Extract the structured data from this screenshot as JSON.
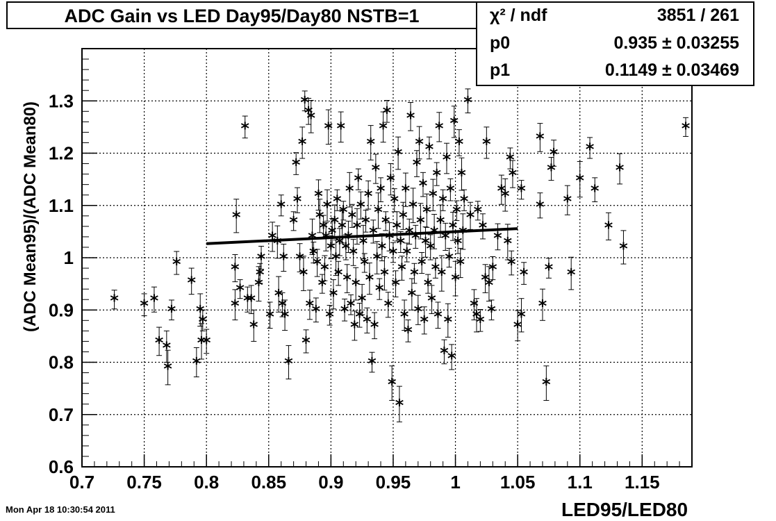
{
  "title": "ADC Gain vs LED Day95/Day80 NSTB=1",
  "stats": [
    {
      "label": "χ² / ndf",
      "value": "3851 / 261"
    },
    {
      "label": "p0",
      "value": "0.935 ± 0.03255"
    },
    {
      "label": "p1",
      "value": "0.1149 ± 0.03469"
    }
  ],
  "footer_date": "Mon Apr 18 10:30:54 2011",
  "chart_data": {
    "type": "scatter",
    "title": "ADC Gain vs LED Day95/Day80 NSTB=1",
    "xlabel": "LED95/LED80",
    "ylabel": "(ADC Mean95)/(ADC Mean80)",
    "xlim": [
      0.7,
      1.19
    ],
    "ylim": [
      0.6,
      1.4
    ],
    "x_ticks": [
      "0.7",
      "0.75",
      "0.8",
      "0.85",
      "0.9",
      "0.95",
      "1",
      "1.05",
      "1.1",
      "1.15"
    ],
    "y_ticks": [
      "0.6",
      "0.7",
      "0.8",
      "0.9",
      "1",
      "1.1",
      "1.2",
      "1.3"
    ],
    "grid": true,
    "fit_line": {
      "p0": 0.935,
      "p1": 0.1149,
      "x_range": [
        0.8,
        1.05
      ]
    },
    "points": [
      [
        0.726,
        0.92
      ],
      [
        0.75,
        0.91
      ],
      [
        0.758,
        0.92
      ],
      [
        0.762,
        0.84
      ],
      [
        0.768,
        0.83
      ],
      [
        0.769,
        0.79
      ],
      [
        0.772,
        0.9
      ],
      [
        0.776,
        0.99
      ],
      [
        0.788,
        0.955
      ],
      [
        0.792,
        0.8
      ],
      [
        0.795,
        0.9
      ],
      [
        0.796,
        0.84
      ],
      [
        0.797,
        0.88
      ],
      [
        0.8,
        0.84
      ],
      [
        0.823,
        0.98
      ],
      [
        0.823,
        0.91
      ],
      [
        0.824,
        1.08
      ],
      [
        0.827,
        0.94
      ],
      [
        0.831,
        1.25
      ],
      [
        0.833,
        0.92
      ],
      [
        0.836,
        0.92
      ],
      [
        0.838,
        0.87
      ],
      [
        0.842,
        0.95
      ],
      [
        0.843,
        0.97
      ],
      [
        0.844,
        1.0
      ],
      [
        0.851,
        0.89
      ],
      [
        0.853,
        1.04
      ],
      [
        0.857,
        1.03
      ],
      [
        0.858,
        0.93
      ],
      [
        0.86,
        1.1
      ],
      [
        0.861,
        0.91
      ],
      [
        0.862,
        1.0
      ],
      [
        0.863,
        0.89
      ],
      [
        0.866,
        0.8
      ],
      [
        0.87,
        1.07
      ],
      [
        0.872,
        1.18
      ],
      [
        0.873,
        1.11
      ],
      [
        0.875,
        1.0
      ],
      [
        0.877,
        1.22
      ],
      [
        0.878,
        0.97
      ],
      [
        0.879,
        1.3
      ],
      [
        0.88,
        0.84
      ],
      [
        0.882,
        1.28
      ],
      [
        0.883,
        0.91
      ],
      [
        0.884,
        1.27
      ],
      [
        0.885,
        1.04
      ],
      [
        0.886,
        1.01
      ],
      [
        0.888,
        0.9
      ],
      [
        0.889,
        0.99
      ],
      [
        0.89,
        1.12
      ],
      [
        0.891,
        1.08
      ],
      [
        0.893,
        0.95
      ],
      [
        0.894,
        1.06
      ],
      [
        0.895,
        0.98
      ],
      [
        0.896,
        1.04
      ],
      [
        0.897,
        1.1
      ],
      [
        0.898,
        1.25
      ],
      [
        0.899,
        0.89
      ],
      [
        0.9,
        1.02
      ],
      [
        0.901,
        1.05
      ],
      [
        0.902,
        0.93
      ],
      [
        0.903,
        1.07
      ],
      [
        0.904,
        1.0
      ],
      [
        0.905,
        1.11
      ],
      [
        0.906,
        0.97
      ],
      [
        0.907,
        1.03
      ],
      [
        0.908,
        1.25
      ],
      [
        0.909,
        1.06
      ],
      [
        0.91,
        1.09
      ],
      [
        0.911,
        0.9
      ],
      [
        0.912,
        1.02
      ],
      [
        0.913,
        0.96
      ],
      [
        0.914,
        1.04
      ],
      [
        0.915,
        1.13
      ],
      [
        0.916,
        0.91
      ],
      [
        0.917,
        1.08
      ],
      [
        0.918,
        1.01
      ],
      [
        0.919,
        0.87
      ],
      [
        0.92,
        0.95
      ],
      [
        0.921,
        1.06
      ],
      [
        0.922,
        1.15
      ],
      [
        0.923,
        0.89
      ],
      [
        0.924,
        1.1
      ],
      [
        0.925,
        0.92
      ],
      [
        0.926,
        1.03
      ],
      [
        0.927,
        0.99
      ],
      [
        0.928,
        1.07
      ],
      [
        0.929,
        0.88
      ],
      [
        0.93,
        1.12
      ],
      [
        0.931,
        0.96
      ],
      [
        0.932,
        1.22
      ],
      [
        0.933,
        0.8
      ],
      [
        0.934,
        1.05
      ],
      [
        0.935,
        0.87
      ],
      [
        0.936,
        1.17
      ],
      [
        0.937,
        1.0
      ],
      [
        0.938,
        1.09
      ],
      [
        0.939,
        0.94
      ],
      [
        0.94,
        1.13
      ],
      [
        0.941,
        1.02
      ],
      [
        0.942,
        1.25
      ],
      [
        0.943,
        0.97
      ],
      [
        0.944,
        1.07
      ],
      [
        0.945,
        1.28
      ],
      [
        0.946,
        0.91
      ],
      [
        0.947,
        1.04
      ],
      [
        0.948,
        1.15
      ],
      [
        0.949,
        0.76
      ],
      [
        0.95,
        1.01
      ],
      [
        0.951,
        1.11
      ],
      [
        0.952,
        0.95
      ],
      [
        0.953,
        1.06
      ],
      [
        0.954,
        1.2
      ],
      [
        0.955,
        0.72
      ],
      [
        0.956,
        1.03
      ],
      [
        0.957,
        0.98
      ],
      [
        0.958,
        1.08
      ],
      [
        0.959,
        0.89
      ],
      [
        0.96,
        1.13
      ],
      [
        0.961,
        1.01
      ],
      [
        0.962,
        0.86
      ],
      [
        0.963,
        1.05
      ],
      [
        0.964,
        1.27
      ],
      [
        0.965,
        0.93
      ],
      [
        0.966,
        1.1
      ],
      [
        0.967,
        0.97
      ],
      [
        0.968,
        1.04
      ],
      [
        0.969,
        1.18
      ],
      [
        0.97,
        0.9
      ],
      [
        0.971,
        1.22
      ],
      [
        0.972,
        1.07
      ],
      [
        0.973,
        0.99
      ],
      [
        0.974,
        1.14
      ],
      [
        0.975,
        0.88
      ],
      [
        0.976,
        1.03
      ],
      [
        0.977,
        1.09
      ],
      [
        0.978,
        0.95
      ],
      [
        0.979,
        1.21
      ],
      [
        0.98,
        1.02
      ],
      [
        0.981,
        0.92
      ],
      [
        0.982,
        1.12
      ],
      [
        0.983,
        1.05
      ],
      [
        0.984,
        0.98
      ],
      [
        0.985,
        1.16
      ],
      [
        0.986,
        0.89
      ],
      [
        0.987,
        1.25
      ],
      [
        0.988,
        1.07
      ],
      [
        0.989,
        0.97
      ],
      [
        0.99,
        1.11
      ],
      [
        0.991,
        0.82
      ],
      [
        0.992,
        1.04
      ],
      [
        0.993,
        1.19
      ],
      [
        0.994,
        0.88
      ],
      [
        0.995,
        1.0
      ],
      [
        0.996,
        1.13
      ],
      [
        0.997,
        0.81
      ],
      [
        0.998,
        1.06
      ],
      [
        0.999,
        1.26
      ],
      [
        1.0,
        0.96
      ],
      [
        1.001,
        1.09
      ],
      [
        1.002,
        1.03
      ],
      [
        1.003,
        1.22
      ],
      [
        1.004,
        0.99
      ],
      [
        1.005,
        1.16
      ],
      [
        1.006,
        1.05
      ],
      [
        1.007,
        1.11
      ],
      [
        1.01,
        1.3
      ],
      [
        1.012,
        1.08
      ],
      [
        1.015,
        0.91
      ],
      [
        1.017,
        0.89
      ],
      [
        1.018,
        1.09
      ],
      [
        1.02,
        0.88
      ],
      [
        1.022,
        1.06
      ],
      [
        1.024,
        0.96
      ],
      [
        1.025,
        1.22
      ],
      [
        1.027,
        0.95
      ],
      [
        1.029,
        0.9
      ],
      [
        1.03,
        0.98
      ],
      [
        1.034,
        1.04
      ],
      [
        1.037,
        1.13
      ],
      [
        1.04,
        1.12
      ],
      [
        1.042,
        1.03
      ],
      [
        1.044,
        1.19
      ],
      [
        1.045,
        0.99
      ],
      [
        1.046,
        1.16
      ],
      [
        1.05,
        0.87
      ],
      [
        1.053,
        0.89
      ],
      [
        1.053,
        1.13
      ],
      [
        1.055,
        0.97
      ],
      [
        1.068,
        1.1
      ],
      [
        1.068,
        1.23
      ],
      [
        1.07,
        0.91
      ],
      [
        1.073,
        0.76
      ],
      [
        1.075,
        0.98
      ],
      [
        1.077,
        1.17
      ],
      [
        1.079,
        1.2
      ],
      [
        1.09,
        1.11
      ],
      [
        1.093,
        0.97
      ],
      [
        1.1,
        1.15
      ],
      [
        1.108,
        1.21
      ],
      [
        1.112,
        1.13
      ],
      [
        1.123,
        1.06
      ],
      [
        1.132,
        1.17
      ],
      [
        1.135,
        1.02
      ],
      [
        1.185,
        1.25
      ]
    ]
  }
}
